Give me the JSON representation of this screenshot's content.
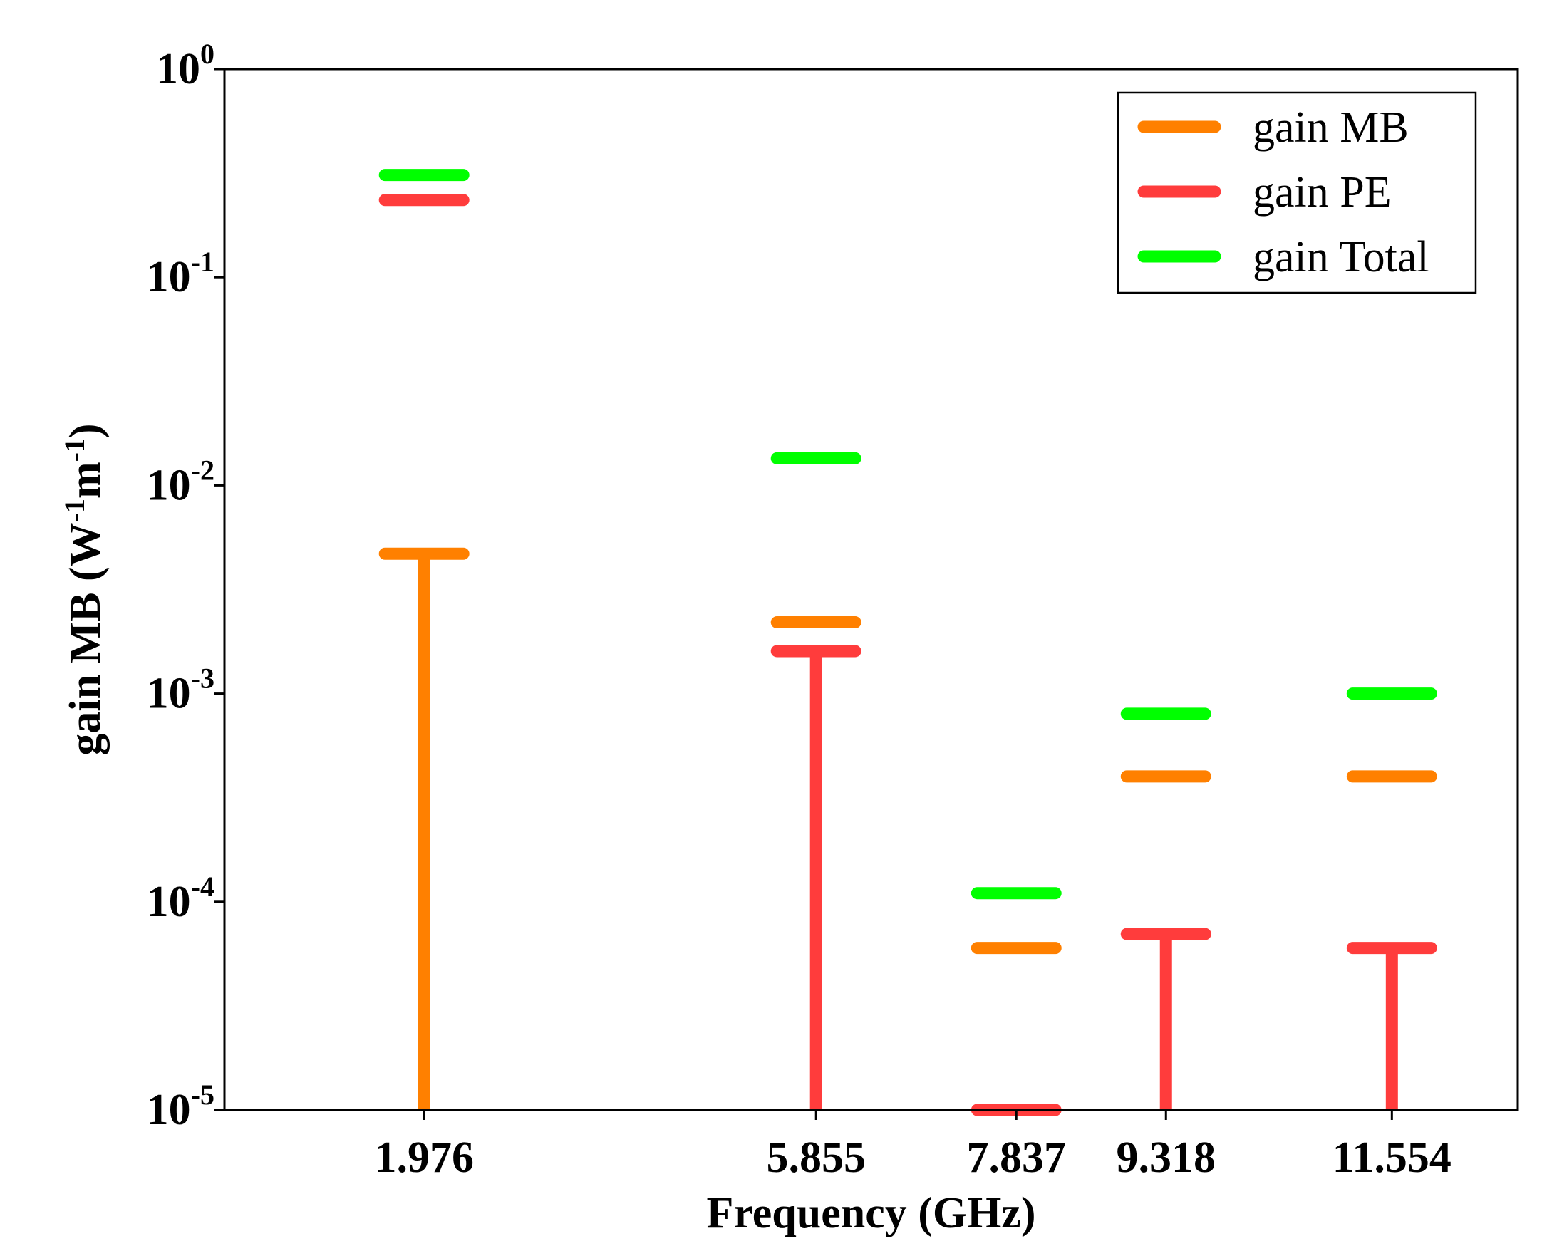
{
  "chart_data": {
    "type": "scatter",
    "title": "",
    "xlabel": "Frequency (GHz)",
    "ylabel": {
      "base": "gain MB (W",
      "exp1": "-1",
      "mid": "m",
      "exp2": "-1",
      "end": ")"
    },
    "yscale": "log",
    "ylim": [
      1e-05,
      1
    ],
    "y_ticks": [
      {
        "base": "10",
        "exp": "0",
        "value": 1
      },
      {
        "base": "10",
        "exp": "-1",
        "value": 0.1
      },
      {
        "base": "10",
        "exp": "-2",
        "value": 0.01
      },
      {
        "base": "10",
        "exp": "-3",
        "value": 0.001
      },
      {
        "base": "10",
        "exp": "-4",
        "value": 0.0001
      },
      {
        "base": "10",
        "exp": "-5",
        "value": 1e-05
      }
    ],
    "categories": [
      "1.976",
      "5.855",
      "7.837",
      "9.318",
      "11.554"
    ],
    "category_positions": [
      1.976,
      5.855,
      7.837,
      9.318,
      11.554
    ],
    "xlim": [
      0,
      12.8
    ],
    "legend_position": "top-right",
    "series": [
      {
        "name": "gain MB",
        "color": "#FF8000",
        "values": [
          0.0047,
          0.0022,
          6e-05,
          0.0004,
          0.0004
        ]
      },
      {
        "name": "gain PE",
        "color": "#FF3C3C",
        "values": [
          0.235,
          0.0016,
          1e-05,
          7e-05,
          6e-05
        ]
      },
      {
        "name": "gain Total",
        "color": "#00FF00",
        "values": [
          0.31,
          0.0135,
          0.00011,
          0.0008,
          0.001
        ]
      }
    ],
    "stems": [
      {
        "series": "gain MB",
        "category": "1.976"
      },
      {
        "series": "gain PE",
        "category": "5.855"
      },
      {
        "series": "gain PE",
        "category": "9.318"
      },
      {
        "series": "gain PE",
        "category": "11.554"
      }
    ]
  }
}
